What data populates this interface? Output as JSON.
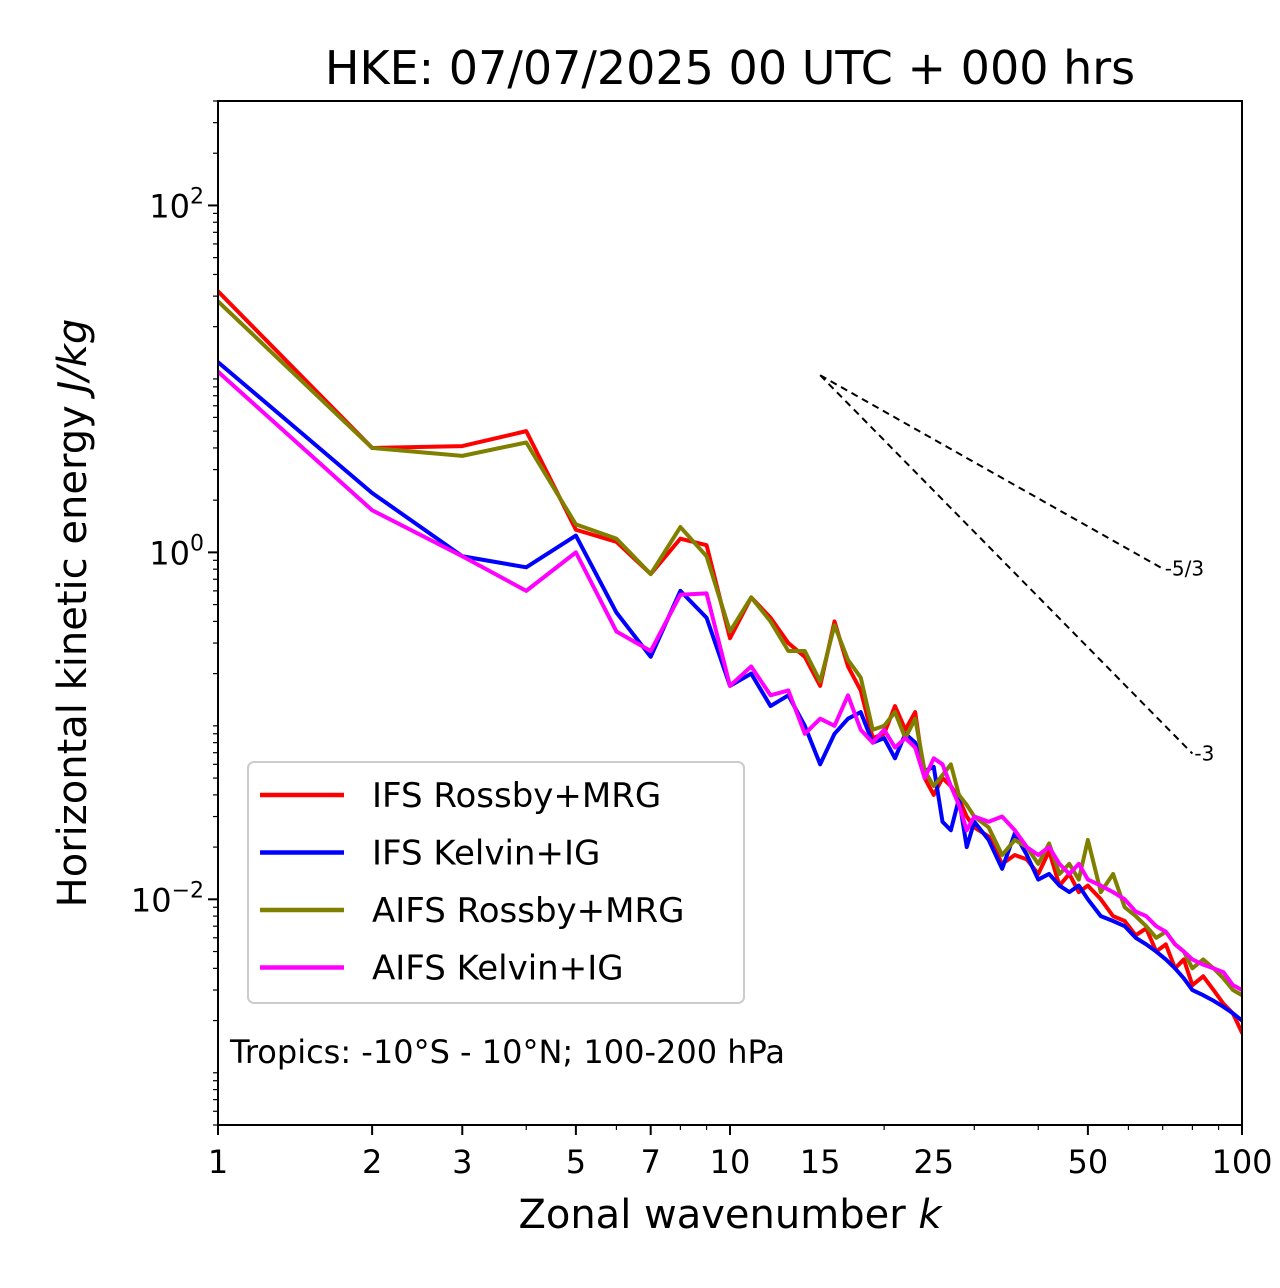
{
  "chart_data": {
    "type": "line",
    "title": "HKE: 07/07/2025 00 UTC + 000 hrs",
    "xlabel": "Zonal wavenumber",
    "xlabel_var": "k",
    "ylabel": "Horizontal kinetic energy",
    "ylabel_unit": "J/kg",
    "xscale": "log",
    "yscale": "log",
    "xlim": [
      1,
      100
    ],
    "ylim": [
      0.0005,
      400
    ],
    "grid": false,
    "legend_position": "lower-left",
    "x_ticks": [
      {
        "value": 1,
        "label": "1"
      },
      {
        "value": 2,
        "label": "2"
      },
      {
        "value": 3,
        "label": "3"
      },
      {
        "value": 5,
        "label": "5"
      },
      {
        "value": 7,
        "label": "7"
      },
      {
        "value": 10,
        "label": "10"
      },
      {
        "value": 15,
        "label": "15"
      },
      {
        "value": 25,
        "label": "25"
      },
      {
        "value": 50,
        "label": "50"
      },
      {
        "value": 100,
        "label": "100"
      }
    ],
    "y_ticks": [
      {
        "value": 0.01,
        "base": "10",
        "exp": "−2"
      },
      {
        "value": 1,
        "base": "10",
        "exp": "0"
      },
      {
        "value": 100,
        "base": "10",
        "exp": "2"
      }
    ],
    "annotation": "Tropics: -10°S - 10°N; 100-200 hPa",
    "reference_lines": [
      {
        "label": "-5/3",
        "slope": -1.6667,
        "x0": 15,
        "y0": 10.5,
        "x1": 70
      },
      {
        "label": "-3",
        "slope": -3,
        "x0": 15,
        "y0": 10.5,
        "x1": 80
      }
    ],
    "series": [
      {
        "name": "IFS Rossby+MRG",
        "color": "#ff0000",
        "x": [
          1,
          2,
          3,
          4,
          5,
          6,
          7,
          8,
          9,
          10,
          11,
          12,
          13,
          14,
          15,
          16,
          17,
          18,
          19,
          20,
          21,
          22,
          23,
          24,
          25,
          26,
          27,
          28,
          29,
          30,
          32,
          34,
          36,
          38,
          40,
          42,
          44,
          46,
          48,
          50,
          53,
          56,
          59,
          62,
          65,
          68,
          71,
          74,
          77,
          80,
          84,
          88,
          92,
          96,
          100
        ],
        "y": [
          32,
          4.0,
          4.1,
          5.0,
          1.35,
          1.15,
          0.75,
          1.2,
          1.1,
          0.32,
          0.55,
          0.42,
          0.3,
          0.25,
          0.17,
          0.4,
          0.22,
          0.16,
          0.085,
          0.09,
          0.13,
          0.095,
          0.12,
          0.05,
          0.04,
          0.05,
          0.045,
          0.038,
          0.03,
          0.026,
          0.023,
          0.016,
          0.018,
          0.017,
          0.014,
          0.019,
          0.012,
          0.014,
          0.011,
          0.012,
          0.01,
          0.008,
          0.0075,
          0.0062,
          0.0068,
          0.005,
          0.0055,
          0.004,
          0.0045,
          0.0032,
          0.0036,
          0.003,
          0.0025,
          0.0022,
          0.0017
        ]
      },
      {
        "name": "IFS Kelvin+IG",
        "color": "#0000ff",
        "x": [
          1,
          2,
          3,
          4,
          5,
          6,
          7,
          8,
          9,
          10,
          11,
          12,
          13,
          14,
          15,
          16,
          17,
          18,
          19,
          20,
          21,
          22,
          23,
          24,
          25,
          26,
          27,
          28,
          29,
          30,
          32,
          34,
          36,
          38,
          40,
          42,
          44,
          46,
          48,
          50,
          53,
          56,
          59,
          62,
          65,
          68,
          71,
          74,
          77,
          80,
          84,
          88,
          92,
          96,
          100
        ],
        "y": [
          12.5,
          2.2,
          0.95,
          0.82,
          1.25,
          0.45,
          0.25,
          0.6,
          0.42,
          0.17,
          0.2,
          0.13,
          0.15,
          0.1,
          0.06,
          0.09,
          0.11,
          0.12,
          0.08,
          0.085,
          0.065,
          0.09,
          0.08,
          0.055,
          0.058,
          0.028,
          0.025,
          0.038,
          0.02,
          0.028,
          0.022,
          0.015,
          0.024,
          0.018,
          0.013,
          0.014,
          0.012,
          0.011,
          0.012,
          0.01,
          0.008,
          0.0075,
          0.007,
          0.006,
          0.0055,
          0.005,
          0.0045,
          0.004,
          0.0035,
          0.003,
          0.0028,
          0.0026,
          0.0024,
          0.0022,
          0.002
        ]
      },
      {
        "name": "AIFS Rossby+MRG",
        "color": "#808000",
        "x": [
          1,
          2,
          3,
          4,
          5,
          6,
          7,
          8,
          9,
          10,
          11,
          12,
          13,
          14,
          15,
          16,
          17,
          18,
          19,
          20,
          21,
          22,
          23,
          24,
          25,
          26,
          27,
          28,
          29,
          30,
          32,
          34,
          36,
          38,
          40,
          42,
          44,
          46,
          48,
          50,
          53,
          56,
          59,
          62,
          65,
          68,
          71,
          74,
          77,
          80,
          84,
          88,
          92,
          96,
          100
        ],
        "y": [
          28,
          4.0,
          3.6,
          4.3,
          1.45,
          1.2,
          0.75,
          1.4,
          0.95,
          0.35,
          0.55,
          0.4,
          0.27,
          0.27,
          0.18,
          0.38,
          0.24,
          0.19,
          0.095,
          0.1,
          0.12,
          0.085,
          0.11,
          0.055,
          0.045,
          0.052,
          0.06,
          0.04,
          0.035,
          0.03,
          0.026,
          0.018,
          0.022,
          0.02,
          0.016,
          0.021,
          0.014,
          0.016,
          0.013,
          0.022,
          0.011,
          0.014,
          0.009,
          0.008,
          0.007,
          0.006,
          0.0065,
          0.0055,
          0.005,
          0.004,
          0.0045,
          0.004,
          0.0035,
          0.003,
          0.0028
        ]
      },
      {
        "name": "AIFS Kelvin+IG",
        "color": "#ff00ff",
        "x": [
          1,
          2,
          3,
          4,
          5,
          6,
          7,
          8,
          9,
          10,
          11,
          12,
          13,
          14,
          15,
          16,
          17,
          18,
          19,
          20,
          21,
          22,
          23,
          24,
          25,
          26,
          27,
          28,
          29,
          30,
          32,
          34,
          36,
          38,
          40,
          42,
          44,
          46,
          48,
          50,
          53,
          56,
          59,
          62,
          65,
          68,
          71,
          74,
          77,
          80,
          84,
          88,
          92,
          96,
          100
        ],
        "y": [
          11,
          1.75,
          0.95,
          0.6,
          1.0,
          0.35,
          0.27,
          0.57,
          0.58,
          0.17,
          0.22,
          0.15,
          0.16,
          0.09,
          0.11,
          0.1,
          0.15,
          0.095,
          0.08,
          0.095,
          0.075,
          0.085,
          0.075,
          0.05,
          0.065,
          0.06,
          0.045,
          0.035,
          0.025,
          0.03,
          0.028,
          0.03,
          0.025,
          0.02,
          0.018,
          0.02,
          0.016,
          0.014,
          0.016,
          0.013,
          0.012,
          0.011,
          0.01,
          0.0085,
          0.008,
          0.007,
          0.0065,
          0.0055,
          0.005,
          0.0045,
          0.0042,
          0.004,
          0.0038,
          0.0032,
          0.003
        ]
      }
    ]
  }
}
